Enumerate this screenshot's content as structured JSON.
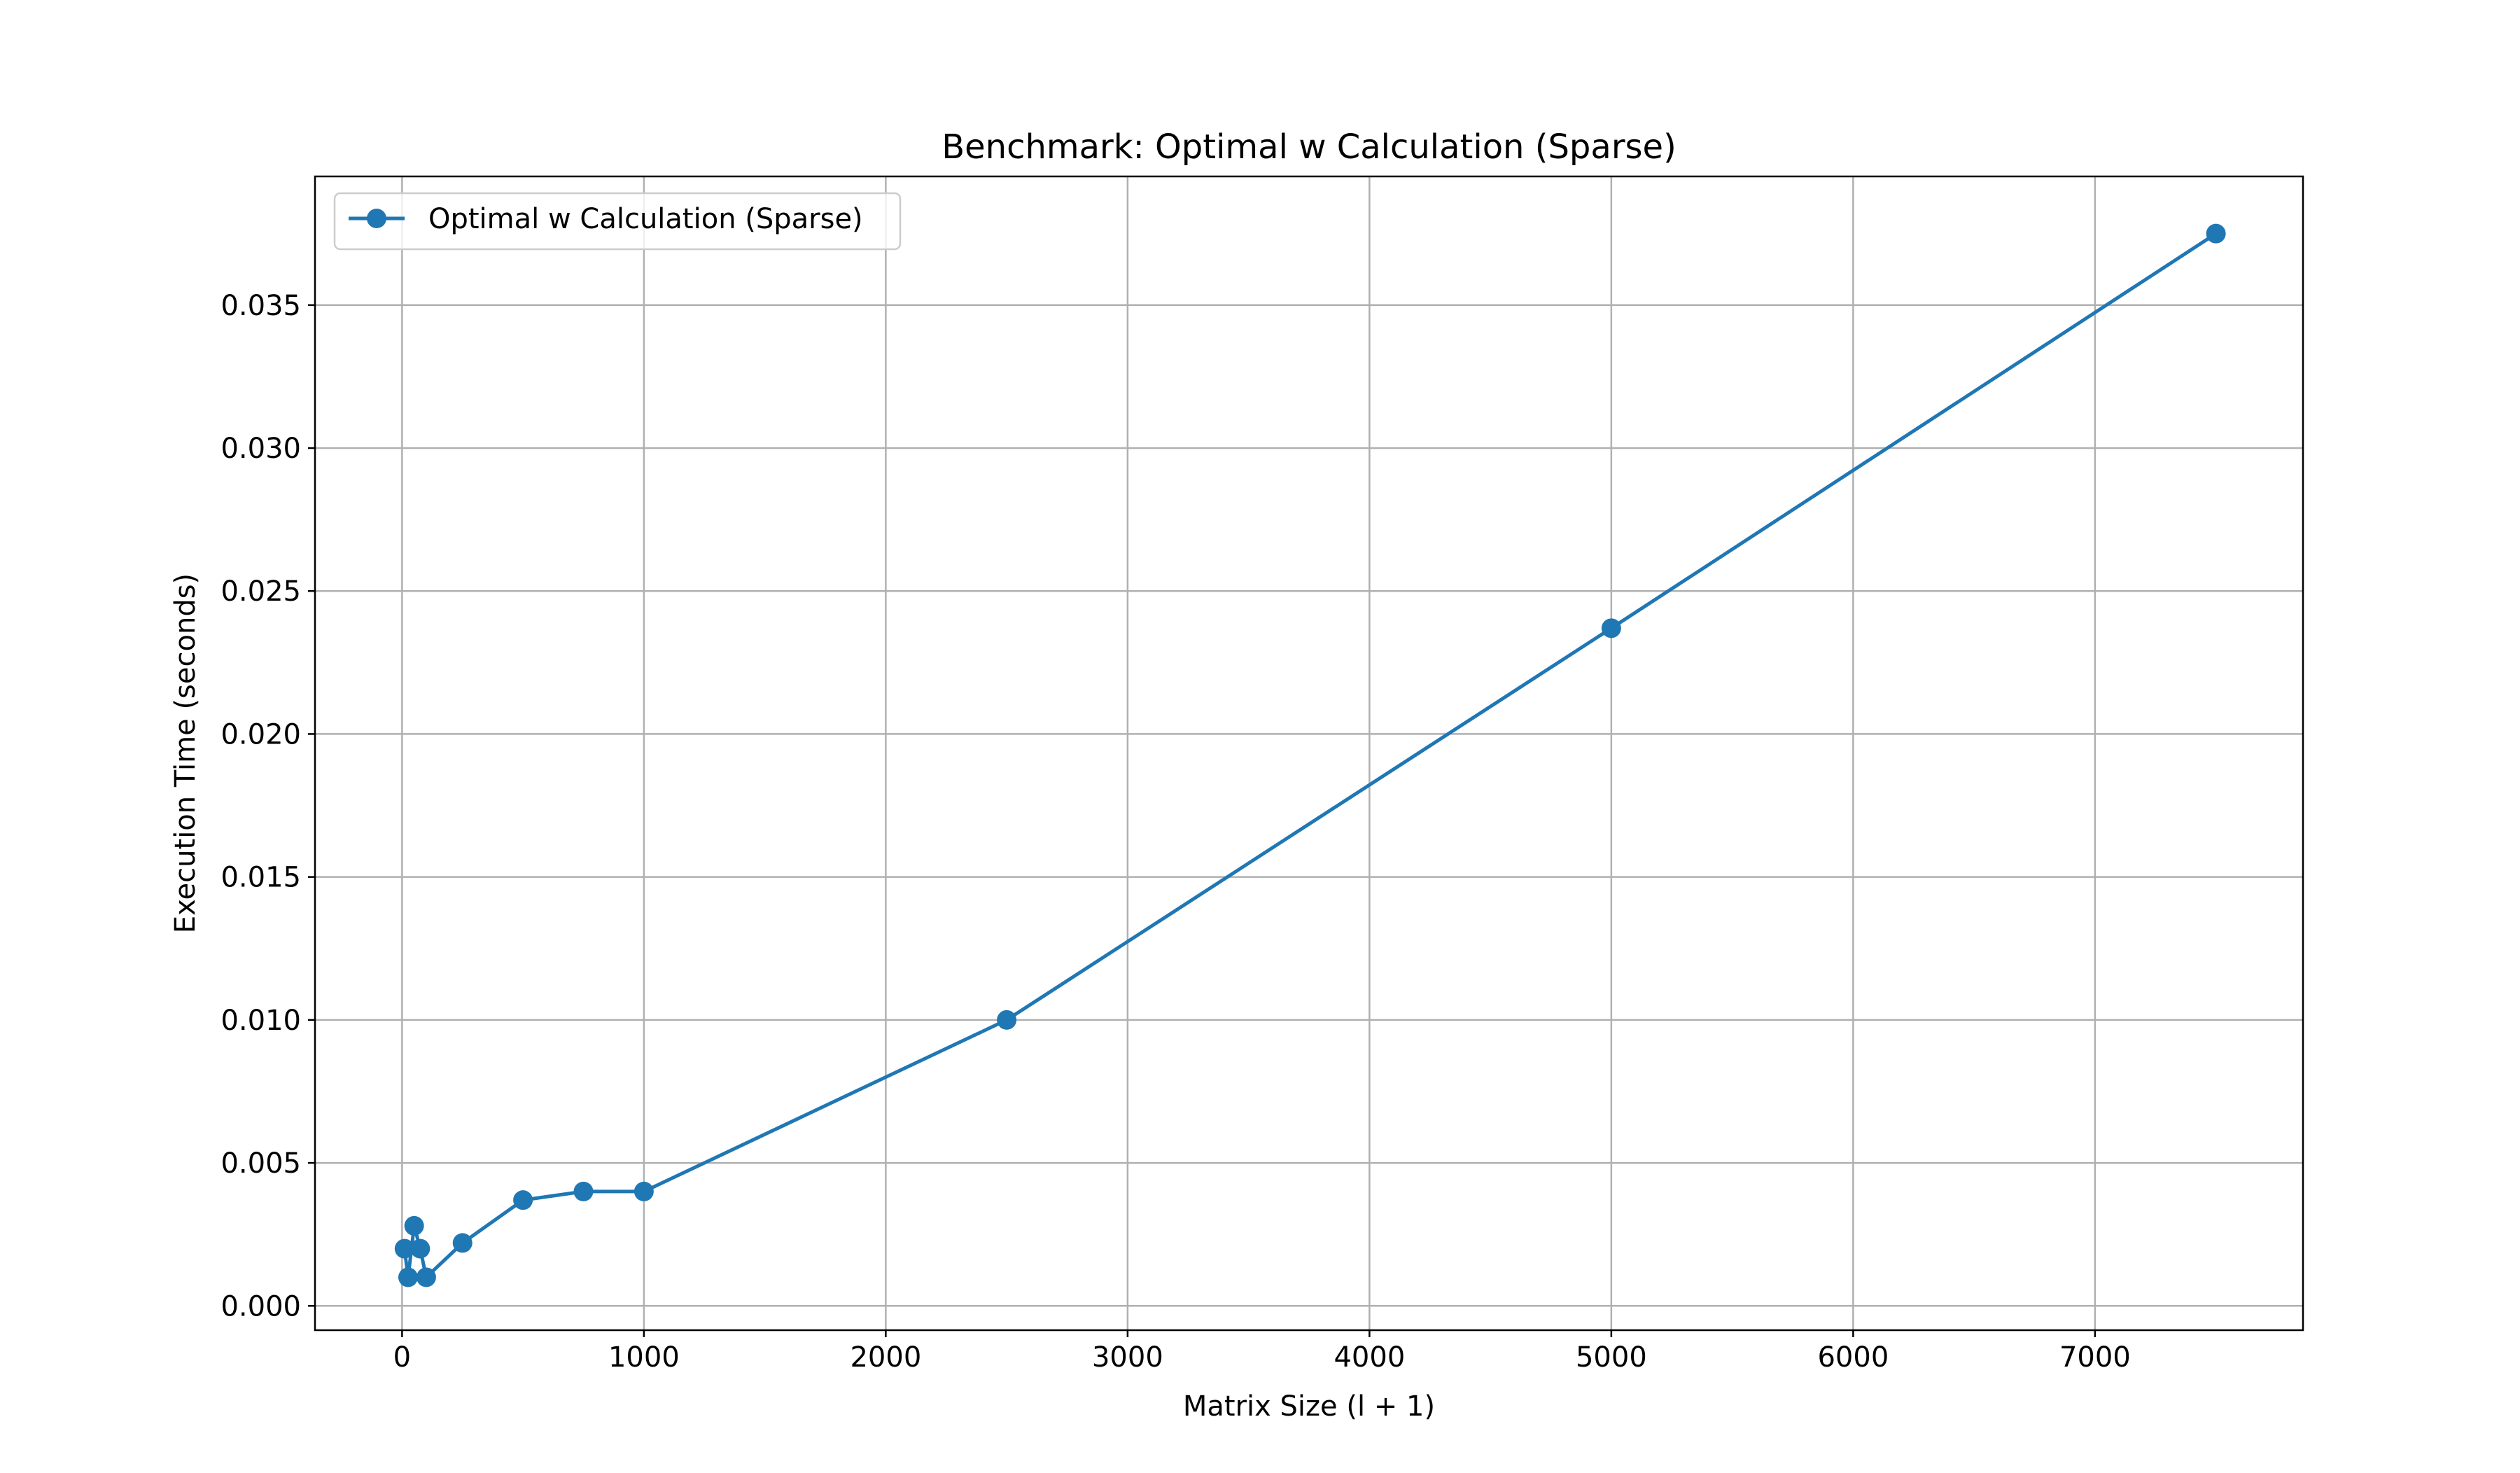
{
  "chart_data": {
    "type": "line",
    "title": "Benchmark: Optimal w Calculation (Sparse)",
    "xlabel": "Matrix Size (l + 1)",
    "ylabel": "Execution Time (seconds)",
    "xlim": [
      -360,
      7860
    ],
    "ylim": [
      -0.00085,
      0.0395
    ],
    "x_ticks": [
      0,
      1000,
      2000,
      3000,
      4000,
      5000,
      6000,
      7000
    ],
    "y_ticks": [
      0.0,
      0.005,
      0.01,
      0.015,
      0.02,
      0.025,
      0.03,
      0.035
    ],
    "x_tick_labels": [
      "0",
      "1000",
      "2000",
      "3000",
      "4000",
      "5000",
      "6000",
      "7000"
    ],
    "y_tick_labels": [
      "0.000",
      "0.005",
      "0.010",
      "0.015",
      "0.020",
      "0.025",
      "0.030",
      "0.035"
    ],
    "grid": true,
    "legend_position": "upper-left",
    "series": [
      {
        "name": "Optimal w Calculation (Sparse)",
        "color": "#1f77b4",
        "marker": "circle",
        "x": [
          10,
          25,
          50,
          75,
          100,
          250,
          500,
          750,
          1000,
          2500,
          5000,
          7500
        ],
        "y": [
          0.002,
          0.001,
          0.0028,
          0.002,
          0.001,
          0.0022,
          0.0037,
          0.004,
          0.004,
          0.01,
          0.0237,
          0.0375
        ]
      }
    ]
  }
}
